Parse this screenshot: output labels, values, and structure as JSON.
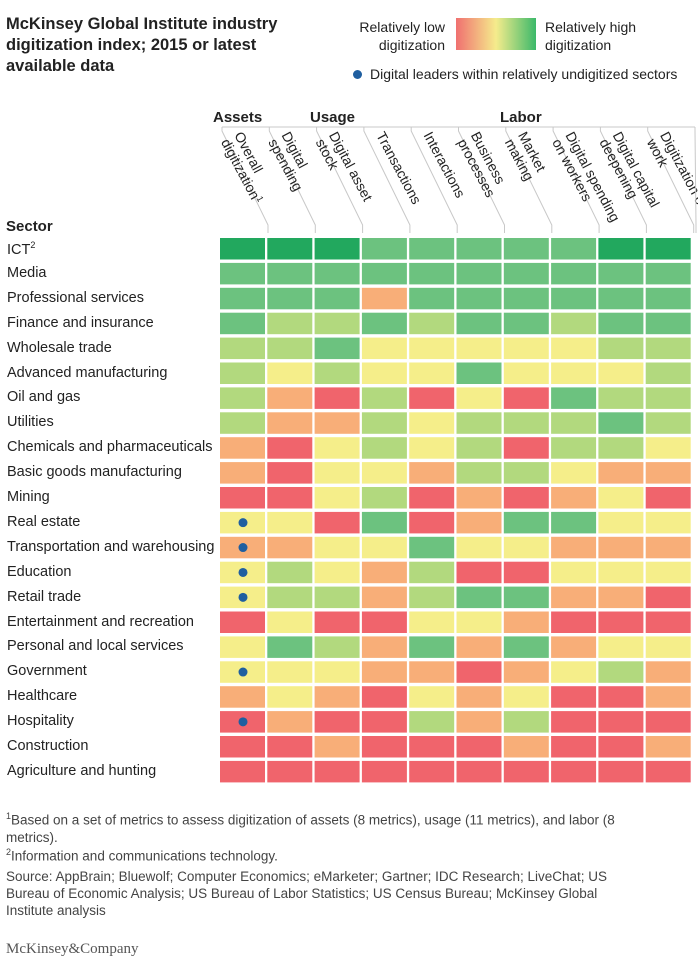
{
  "title": "McKinsey Global Institute industry digitization index; 2015 or latest available data",
  "legend": {
    "low_label": "Relatively low digitization",
    "high_label": "Relatively high digitization",
    "low_color": "#f07070",
    "mid_color": "#f5ec8c",
    "high_color": "#3cb96a",
    "dot_label": "Digital leaders within relatively undigitized sectors",
    "dot_color": "#1f5fa0"
  },
  "groups": [
    {
      "label": "Assets"
    },
    {
      "label": "Usage"
    },
    {
      "label": "Labor"
    }
  ],
  "sector_header": "Sector",
  "palette": {
    "1": "#f0646c",
    "2": "#f8ae78",
    "3": "#f5ee8a",
    "4": "#b2d97e",
    "5": "#6cc27f",
    "6": "#22a85e"
  },
  "chart_data": {
    "type": "heatmap",
    "title": "McKinsey Global Institute industry digitization index; 2015 or latest available data",
    "scale": "1 = relatively low digitization ... 6 = relatively high digitization",
    "columns": [
      {
        "label": "Overall digitization",
        "sup": "1"
      },
      {
        "label": "Digital spending",
        "sup": ""
      },
      {
        "label": "Digital asset stock",
        "sup": ""
      },
      {
        "label": "Transactions",
        "sup": ""
      },
      {
        "label": "Interactions",
        "sup": ""
      },
      {
        "label": "Business processes",
        "sup": ""
      },
      {
        "label": "Market making",
        "sup": ""
      },
      {
        "label": "Digital spending on workers",
        "sup": ""
      },
      {
        "label": "Digital capital deepening",
        "sup": ""
      },
      {
        "label": "Digitization of work",
        "sup": ""
      }
    ],
    "rows": [
      {
        "sector": "ICT",
        "sup": "2",
        "leader": false,
        "values": [
          6,
          6,
          6,
          5,
          5,
          5,
          5,
          5,
          6,
          6
        ]
      },
      {
        "sector": "Media",
        "sup": "",
        "leader": false,
        "values": [
          5,
          5,
          5,
          5,
          5,
          5,
          5,
          5,
          5,
          5
        ]
      },
      {
        "sector": "Professional services",
        "sup": "",
        "leader": false,
        "values": [
          5,
          5,
          5,
          2,
          5,
          5,
          5,
          5,
          5,
          5
        ]
      },
      {
        "sector": "Finance and insurance",
        "sup": "",
        "leader": false,
        "values": [
          5,
          4,
          4,
          5,
          4,
          5,
          5,
          4,
          5,
          5
        ]
      },
      {
        "sector": "Wholesale trade",
        "sup": "",
        "leader": false,
        "values": [
          4,
          4,
          5,
          3,
          3,
          3,
          3,
          3,
          4,
          4
        ]
      },
      {
        "sector": "Advanced manufacturing",
        "sup": "",
        "leader": false,
        "values": [
          4,
          3,
          4,
          3,
          3,
          5,
          3,
          3,
          3,
          4
        ]
      },
      {
        "sector": "Oil and gas",
        "sup": "",
        "leader": false,
        "values": [
          4,
          2,
          1,
          4,
          1,
          3,
          1,
          5,
          4,
          4
        ]
      },
      {
        "sector": "Utilities",
        "sup": "",
        "leader": false,
        "values": [
          4,
          2,
          2,
          4,
          3,
          4,
          4,
          4,
          5,
          4
        ]
      },
      {
        "sector": "Chemicals and pharmaceuticals",
        "sup": "",
        "leader": false,
        "values": [
          2,
          1,
          3,
          4,
          3,
          4,
          1,
          4,
          4,
          3
        ]
      },
      {
        "sector": "Basic goods manufacturing",
        "sup": "",
        "leader": false,
        "values": [
          2,
          1,
          3,
          3,
          2,
          4,
          4,
          3,
          2,
          2
        ]
      },
      {
        "sector": "Mining",
        "sup": "",
        "leader": false,
        "values": [
          1,
          1,
          3,
          4,
          1,
          2,
          1,
          2,
          3,
          1
        ]
      },
      {
        "sector": "Real estate",
        "sup": "",
        "leader": true,
        "values": [
          3,
          3,
          1,
          5,
          1,
          2,
          5,
          5,
          3,
          3
        ]
      },
      {
        "sector": "Transportation and warehousing",
        "sup": "",
        "leader": true,
        "values": [
          2,
          2,
          3,
          3,
          5,
          3,
          3,
          2,
          2,
          2
        ]
      },
      {
        "sector": "Education",
        "sup": "",
        "leader": true,
        "values": [
          3,
          4,
          3,
          2,
          4,
          1,
          1,
          3,
          3,
          3
        ]
      },
      {
        "sector": "Retail trade",
        "sup": "",
        "leader": true,
        "values": [
          3,
          4,
          4,
          2,
          4,
          5,
          5,
          2,
          2,
          1
        ]
      },
      {
        "sector": "Entertainment and recreation",
        "sup": "",
        "leader": false,
        "values": [
          1,
          3,
          1,
          1,
          3,
          3,
          2,
          1,
          1,
          1
        ]
      },
      {
        "sector": "Personal and local services",
        "sup": "",
        "leader": false,
        "values": [
          3,
          5,
          4,
          2,
          5,
          2,
          5,
          2,
          3,
          3
        ]
      },
      {
        "sector": "Government",
        "sup": "",
        "leader": true,
        "values": [
          3,
          3,
          3,
          2,
          2,
          1,
          2,
          3,
          4,
          2
        ]
      },
      {
        "sector": "Healthcare",
        "sup": "",
        "leader": false,
        "values": [
          2,
          3,
          2,
          1,
          3,
          2,
          3,
          1,
          1,
          2
        ]
      },
      {
        "sector": "Hospitality",
        "sup": "",
        "leader": true,
        "values": [
          1,
          2,
          1,
          1,
          4,
          2,
          4,
          1,
          1,
          1
        ]
      },
      {
        "sector": "Construction",
        "sup": "",
        "leader": false,
        "values": [
          1,
          1,
          2,
          1,
          1,
          1,
          2,
          1,
          1,
          2
        ]
      },
      {
        "sector": "Agriculture and hunting",
        "sup": "",
        "leader": false,
        "values": [
          1,
          1,
          1,
          1,
          1,
          1,
          1,
          1,
          1,
          1
        ]
      }
    ]
  },
  "footnotes": {
    "fn1_sup": "1",
    "fn1": "Based on a set of metrics to assess digitization of assets (8 metrics), usage (11 metrics), and labor (8 metrics).",
    "fn2_sup": "2",
    "fn2": "Information and communications technology.",
    "source": "Source: AppBrain; Bluewolf; Computer Economics; eMarketer; Gartner; IDC Research; LiveChat; US Bureau of Economic Analysis; US Bureau of Labor Statistics; US Census Bureau; McKinsey Global Institute analysis"
  },
  "brand": "McKinsey&Company"
}
